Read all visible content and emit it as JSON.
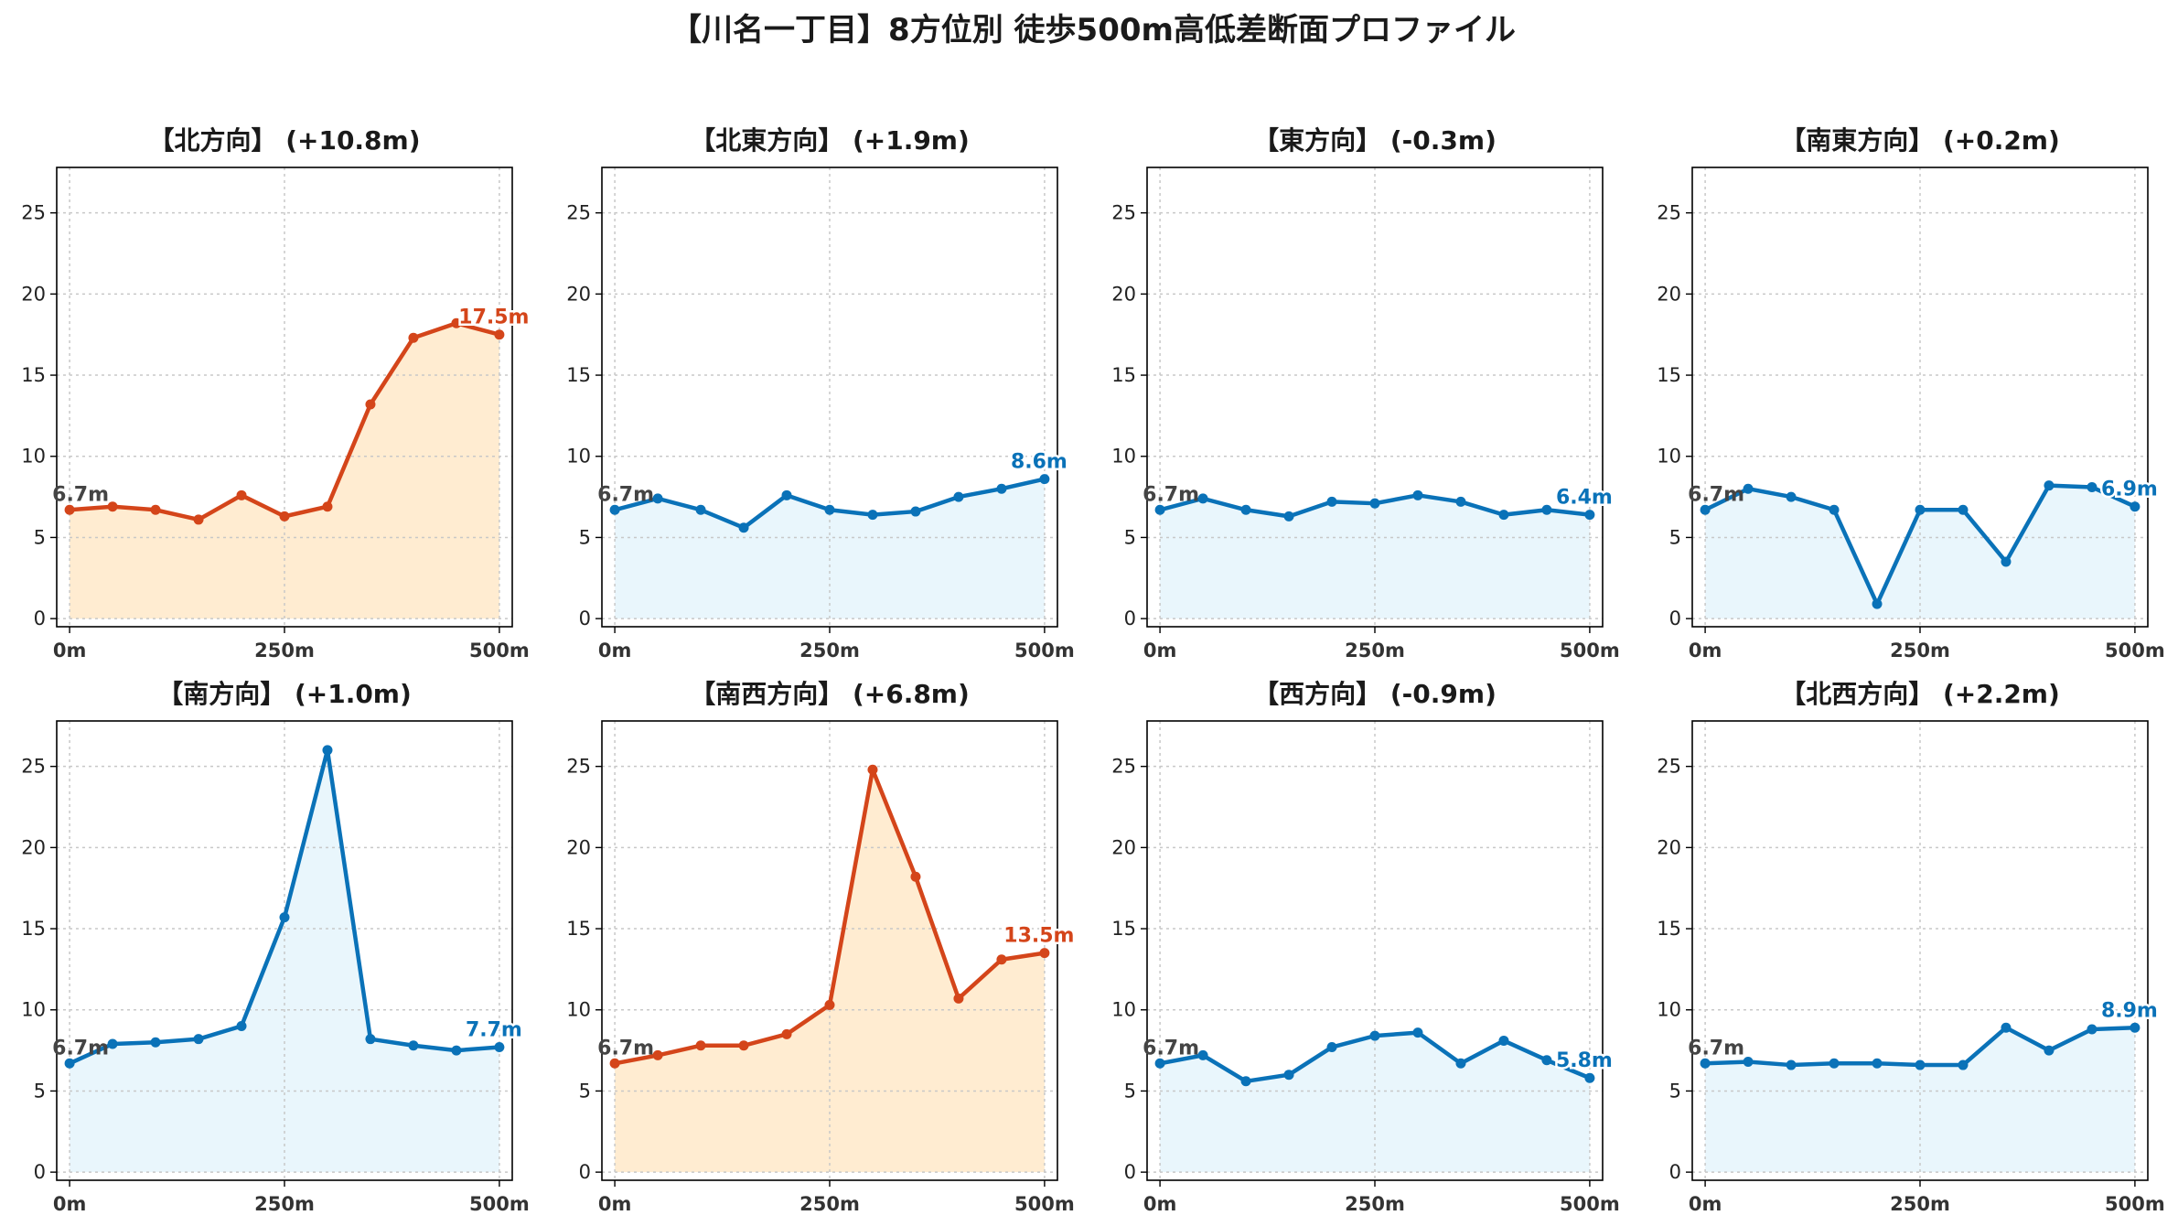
{
  "figure_title": "【川名一丁目】8方位別 徒歩500m高低差断面プロファイル",
  "colors": {
    "uphill_line": "#d4451a",
    "uphill_fill": "#ffecd1",
    "flat_line": "#0a72b8",
    "flat_fill": "#e9f6fc",
    "start_label": "#444444"
  },
  "chart_data": [
    {
      "type": "area",
      "title": "【北方向】 (+10.8m)",
      "color_scheme": "uphill",
      "x": [
        0,
        50,
        100,
        150,
        200,
        250,
        300,
        350,
        400,
        450,
        500
      ],
      "y": [
        6.7,
        6.9,
        6.7,
        6.1,
        7.6,
        6.3,
        6.9,
        13.2,
        17.3,
        18.2,
        17.5
      ],
      "start_label": "6.7m",
      "end_label": "17.5m",
      "xticks": [
        "0m",
        "250m",
        "500m"
      ],
      "yticks": [
        "0",
        "5",
        "10",
        "15",
        "20",
        "25"
      ],
      "xlim": [
        -15,
        515
      ],
      "ylim": [
        -0.5,
        27.8
      ],
      "grid": true
    },
    {
      "type": "area",
      "title": "【北東方向】 (+1.9m)",
      "color_scheme": "flat",
      "x": [
        0,
        50,
        100,
        150,
        200,
        250,
        300,
        350,
        400,
        450,
        500
      ],
      "y": [
        6.7,
        7.4,
        6.7,
        5.6,
        7.6,
        6.7,
        6.4,
        6.6,
        7.5,
        8.0,
        8.6
      ],
      "start_label": "6.7m",
      "end_label": "8.6m",
      "xticks": [
        "0m",
        "250m",
        "500m"
      ],
      "yticks": [
        "0",
        "5",
        "10",
        "15",
        "20",
        "25"
      ],
      "xlim": [
        -15,
        515
      ],
      "ylim": [
        -0.5,
        27.8
      ],
      "grid": true
    },
    {
      "type": "area",
      "title": "【東方向】 (-0.3m)",
      "color_scheme": "flat",
      "x": [
        0,
        50,
        100,
        150,
        200,
        250,
        300,
        350,
        400,
        450,
        500
      ],
      "y": [
        6.7,
        7.4,
        6.7,
        6.3,
        7.2,
        7.1,
        7.6,
        7.2,
        6.4,
        6.7,
        6.4
      ],
      "start_label": "6.7m",
      "end_label": "6.4m",
      "xticks": [
        "0m",
        "250m",
        "500m"
      ],
      "yticks": [
        "0",
        "5",
        "10",
        "15",
        "20",
        "25"
      ],
      "xlim": [
        -15,
        515
      ],
      "ylim": [
        -0.5,
        27.8
      ],
      "grid": true
    },
    {
      "type": "area",
      "title": "【南東方向】 (+0.2m)",
      "color_scheme": "flat",
      "x": [
        0,
        50,
        100,
        150,
        200,
        250,
        300,
        350,
        400,
        450,
        500
      ],
      "y": [
        6.7,
        8.0,
        7.5,
        6.7,
        0.9,
        6.7,
        6.7,
        3.5,
        8.2,
        8.1,
        6.9
      ],
      "start_label": "6.7m",
      "end_label": "6.9m",
      "xticks": [
        "0m",
        "250m",
        "500m"
      ],
      "yticks": [
        "0",
        "5",
        "10",
        "15",
        "20",
        "25"
      ],
      "xlim": [
        -15,
        515
      ],
      "ylim": [
        -0.5,
        27.8
      ],
      "grid": true
    },
    {
      "type": "area",
      "title": "【南方向】 (+1.0m)",
      "color_scheme": "flat",
      "x": [
        0,
        50,
        100,
        150,
        200,
        250,
        300,
        350,
        400,
        450,
        500
      ],
      "y": [
        6.7,
        7.9,
        8.0,
        8.2,
        9.0,
        15.7,
        26.0,
        8.2,
        7.8,
        7.5,
        7.7
      ],
      "start_label": "6.7m",
      "end_label": "7.7m",
      "xticks": [
        "0m",
        "250m",
        "500m"
      ],
      "yticks": [
        "0",
        "5",
        "10",
        "15",
        "20",
        "25"
      ],
      "xlim": [
        -15,
        515
      ],
      "ylim": [
        -0.5,
        27.8
      ],
      "grid": true
    },
    {
      "type": "area",
      "title": "【南西方向】 (+6.8m)",
      "color_scheme": "uphill",
      "x": [
        0,
        50,
        100,
        150,
        200,
        250,
        300,
        350,
        400,
        450,
        500
      ],
      "y": [
        6.7,
        7.2,
        7.8,
        7.8,
        8.5,
        10.3,
        24.8,
        18.2,
        10.7,
        13.1,
        13.5
      ],
      "start_label": "6.7m",
      "end_label": "13.5m",
      "xticks": [
        "0m",
        "250m",
        "500m"
      ],
      "yticks": [
        "0",
        "5",
        "10",
        "15",
        "20",
        "25"
      ],
      "xlim": [
        -15,
        515
      ],
      "ylim": [
        -0.5,
        27.8
      ],
      "grid": true
    },
    {
      "type": "area",
      "title": "【西方向】 (-0.9m)",
      "color_scheme": "flat",
      "x": [
        0,
        50,
        100,
        150,
        200,
        250,
        300,
        350,
        400,
        450,
        500
      ],
      "y": [
        6.7,
        7.2,
        5.6,
        6.0,
        7.7,
        8.4,
        8.6,
        6.7,
        8.1,
        6.9,
        5.8
      ],
      "start_label": "6.7m",
      "end_label": "5.8m",
      "xticks": [
        "0m",
        "250m",
        "500m"
      ],
      "yticks": [
        "0",
        "5",
        "10",
        "15",
        "20",
        "25"
      ],
      "xlim": [
        -15,
        515
      ],
      "ylim": [
        -0.5,
        27.8
      ],
      "grid": true
    },
    {
      "type": "area",
      "title": "【北西方向】 (+2.2m)",
      "color_scheme": "flat",
      "x": [
        0,
        50,
        100,
        150,
        200,
        250,
        300,
        350,
        400,
        450,
        500
      ],
      "y": [
        6.7,
        6.8,
        6.6,
        6.7,
        6.7,
        6.6,
        6.6,
        8.9,
        7.5,
        8.8,
        8.9
      ],
      "start_label": "6.7m",
      "end_label": "8.9m",
      "xticks": [
        "0m",
        "250m",
        "500m"
      ],
      "yticks": [
        "0",
        "5",
        "10",
        "15",
        "20",
        "25"
      ],
      "xlim": [
        -15,
        515
      ],
      "ylim": [
        -0.5,
        27.8
      ],
      "grid": true
    }
  ]
}
